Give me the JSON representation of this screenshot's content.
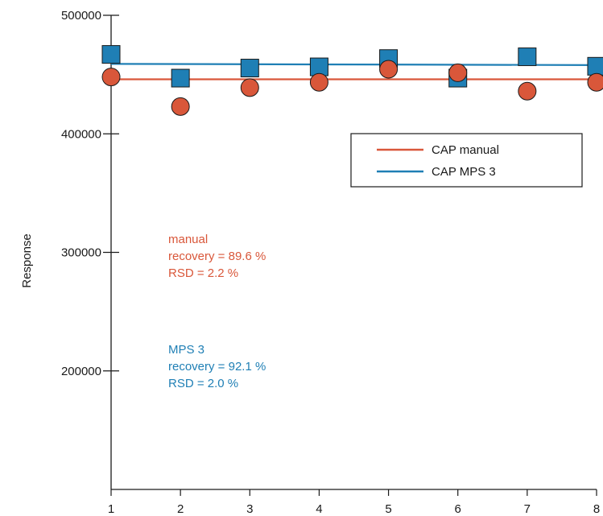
{
  "chart_data": {
    "type": "scatter",
    "title": "",
    "xlabel": "",
    "ylabel": "Response",
    "xlim": [
      1,
      8
    ],
    "ylim": [
      100000,
      500000
    ],
    "x_ticks": [
      1,
      2,
      3,
      4,
      5,
      6,
      7,
      8
    ],
    "y_ticks": [
      200000,
      300000,
      400000,
      500000
    ],
    "grid": false,
    "legend_position": "upper-right",
    "series": [
      {
        "name": "CAP manual",
        "marker": "circle",
        "color": "#d9573a",
        "x": [
          1,
          2,
          3,
          4,
          5,
          6,
          7,
          8
        ],
        "values": [
          448000,
          423000,
          439000,
          443500,
          454500,
          451500,
          436000,
          443500
        ],
        "fit_line": [
          446000,
          446000
        ]
      },
      {
        "name": "CAP MPS 3",
        "marker": "square",
        "color": "#1f7fb5",
        "x": [
          1,
          2,
          3,
          4,
          5,
          6,
          7,
          8
        ],
        "values": [
          467000,
          447000,
          455500,
          456500,
          463500,
          447000,
          465000,
          457000
        ],
        "fit_line": [
          459000,
          458000
        ]
      }
    ],
    "annotations": [
      {
        "color": "#d9573a",
        "lines": [
          "manual",
          "recovery = 89.6 %",
          "RSD = 2.2 %"
        ]
      },
      {
        "color": "#1f7fb5",
        "lines": [
          "MPS 3",
          "recovery = 92.1 %",
          "RSD = 2.0 %"
        ]
      }
    ]
  }
}
